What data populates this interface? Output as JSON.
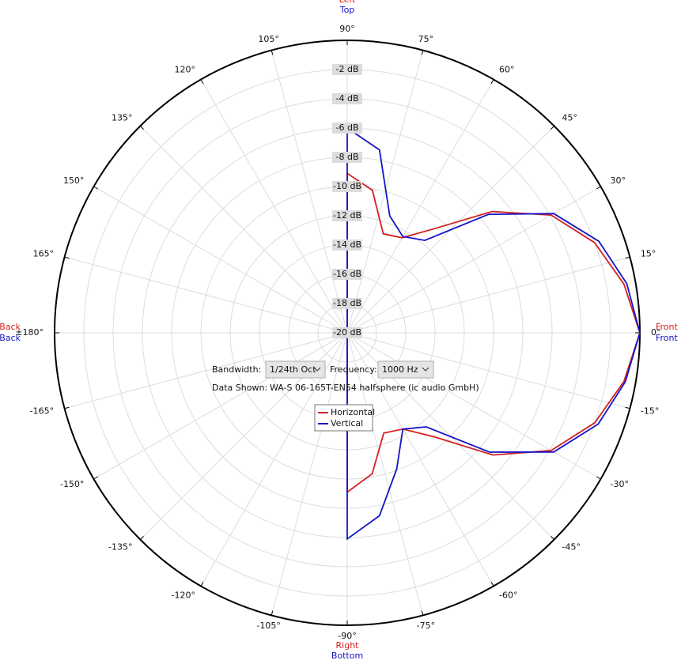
{
  "chart_data": {
    "type": "polar",
    "angles": [
      -180,
      -90,
      -80,
      -70,
      -60,
      -50,
      -40,
      -30,
      -20,
      -10,
      0,
      10,
      20,
      30,
      40,
      50,
      60,
      70,
      80,
      90,
      180
    ],
    "series": [
      {
        "name": "Horizontal",
        "color": "#d42020",
        "values": [
          -20,
          -9.1,
          -10.2,
          -12.7,
          -12.4,
          -10.7,
          -7.0,
          -3.9,
          -2.0,
          -0.8,
          0,
          -0.8,
          -2.0,
          -3.9,
          -7.1,
          -10.7,
          -12.5,
          -12.8,
          -10.1,
          -9.1,
          -20
        ]
      },
      {
        "name": "Vertical",
        "color": "#1414c8",
        "values": [
          -20,
          -5.9,
          -7.3,
          -10.1,
          -12.4,
          -11.6,
          -7.3,
          -3.7,
          -1.75,
          -0.7,
          0,
          -0.6,
          -1.7,
          -3.7,
          -7.4,
          -11.75,
          -12.4,
          -11.5,
          -7.3,
          -6.0,
          -20
        ]
      }
    ],
    "rlim": [
      -20,
      0
    ],
    "rticks": [
      {
        "value": -20,
        "label": "-20 dB"
      },
      {
        "value": -18,
        "label": "-18 dB"
      },
      {
        "value": -16,
        "label": "-16 dB"
      },
      {
        "value": -14,
        "label": "-14 dB"
      },
      {
        "value": -12,
        "label": "-12 dB"
      },
      {
        "value": -10,
        "label": "-10 dB"
      },
      {
        "value": -8,
        "label": "-8 dB"
      },
      {
        "value": -6,
        "label": "-6 dB"
      },
      {
        "value": -4,
        "label": "-4 dB"
      },
      {
        "value": -2,
        "label": "-2 dB"
      }
    ],
    "angle_ticks": [
      {
        "value": 0,
        "label": "0°"
      },
      {
        "value": 15,
        "label": "15°"
      },
      {
        "value": 30,
        "label": "30°"
      },
      {
        "value": 45,
        "label": "45°"
      },
      {
        "value": 60,
        "label": "60°"
      },
      {
        "value": 75,
        "label": "75°"
      },
      {
        "value": 90,
        "label": "90°"
      },
      {
        "value": 105,
        "label": "105°"
      },
      {
        "value": 120,
        "label": "120°"
      },
      {
        "value": 135,
        "label": "135°"
      },
      {
        "value": 150,
        "label": "150°"
      },
      {
        "value": 165,
        "label": "165°"
      },
      {
        "value": 180,
        "label": "±180°"
      },
      {
        "value": -165,
        "label": "-165°"
      },
      {
        "value": -150,
        "label": "-150°"
      },
      {
        "value": -135,
        "label": "-135°"
      },
      {
        "value": -120,
        "label": "-120°"
      },
      {
        "value": -105,
        "label": "-105°"
      },
      {
        "value": -90,
        "label": "-90°"
      },
      {
        "value": -75,
        "label": "-75°"
      },
      {
        "value": -60,
        "label": "-60°"
      },
      {
        "value": -45,
        "label": "-45°"
      },
      {
        "value": -30,
        "label": "-30°"
      },
      {
        "value": -15,
        "label": "-15°"
      }
    ],
    "direction_labels": {
      "top": [
        "Left",
        "Top"
      ],
      "bottom": [
        "Right",
        "Bottom"
      ],
      "left": [
        "Back",
        "Back"
      ],
      "right": [
        "Front",
        "Front"
      ]
    },
    "grid": true
  },
  "controls": {
    "bandwidth_label": "Bandwidth:",
    "bandwidth": "1/24th Oct",
    "frequency_label": "Frequency:",
    "frequency": "1000 Hz",
    "data_shown_label": "Data Shown:",
    "data_shown": "WA-S 06-165T-EN54 halfsphere (ic audio GmbH)"
  }
}
